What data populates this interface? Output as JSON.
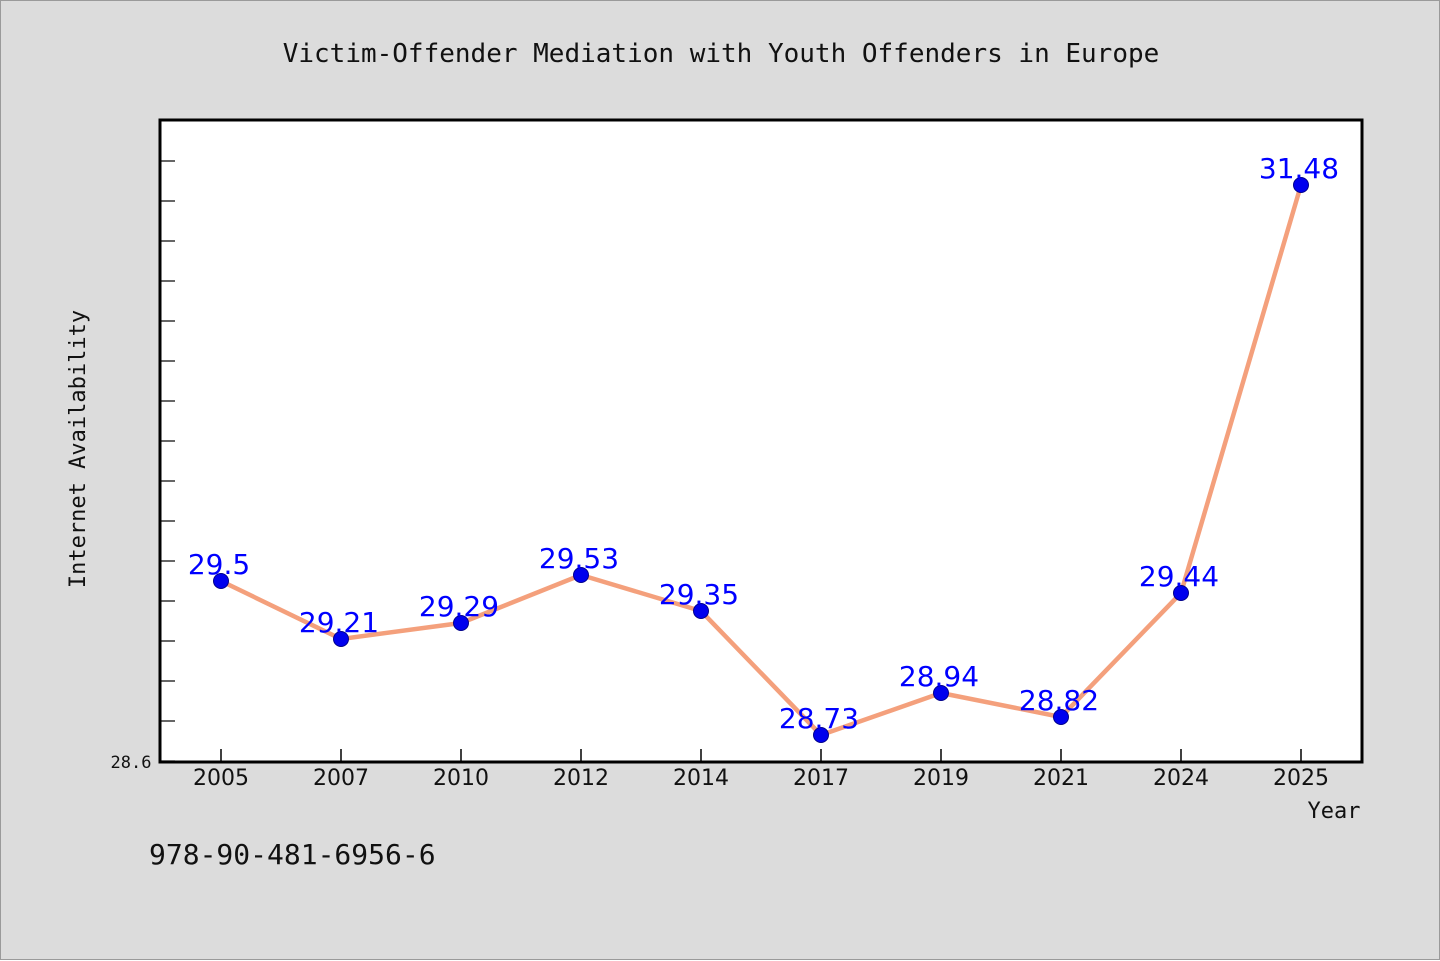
{
  "chart_data": {
    "type": "line",
    "title": "Victim-Offender Mediation with Youth Offenders in Europe",
    "xlabel": "Year",
    "ylabel": "Internet Availability",
    "categories": [
      "2005",
      "2007",
      "2010",
      "2012",
      "2014",
      "2017",
      "2019",
      "2021",
      "2024",
      "2025"
    ],
    "series": [
      {
        "values": [
          29.5,
          29.21,
          29.29,
          29.53,
          29.35,
          28.73,
          28.94,
          28.82,
          29.44,
          31.48
        ],
        "labels": [
          "29.5",
          "29.21",
          "29.29",
          "29.53",
          "29.35",
          "28.73",
          "28.94",
          "28.82",
          "29.44",
          "31.48"
        ],
        "line_color": "#f4a07c",
        "marker_color": "#0000ee",
        "label_color": "#0000ff"
      }
    ],
    "ylim": [
      28.6,
      31.8
    ],
    "y_tick_labels": [
      "28.6"
    ],
    "grid": false,
    "legend": "none"
  },
  "footer": {
    "isbn": "978-90-481-6956-6"
  },
  "colors": {
    "background": "#dcdcdc",
    "plot_bg": "#ffffff",
    "axis": "#000000"
  }
}
